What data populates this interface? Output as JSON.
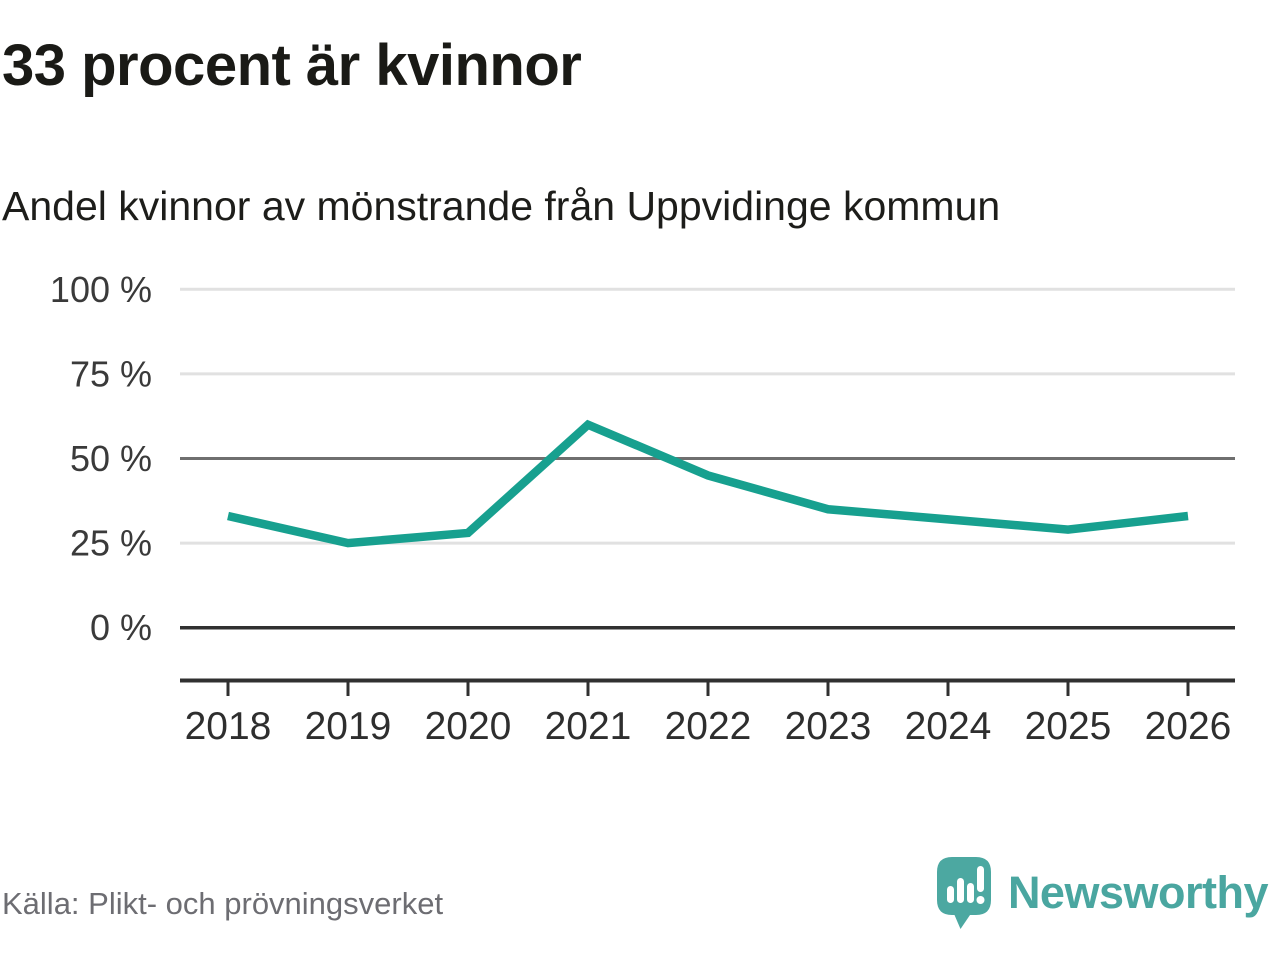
{
  "header": {
    "title": "33 procent är kvinnor",
    "subtitle": "Andel kvinnor av mönstrande från Uppvidinge kommun"
  },
  "footer": {
    "source": "Källa: Plikt- och prövningsverket",
    "brand": "Newsworthy"
  },
  "colors": {
    "line": "#17A08F",
    "brand_teal": "#4AA6A0",
    "grid_light": "#E1E1E1",
    "grid_mid": "#6F6F6F",
    "grid_dark": "#303030",
    "tick_label": "#2E2E2E",
    "y_label": "#3A3A3A"
  },
  "chart_data": {
    "type": "line",
    "title": "33 procent är kvinnor",
    "subtitle": "Andel kvinnor av mönstrande från Uppvidinge kommun",
    "x": [
      "2018",
      "2019",
      "2020",
      "2021",
      "2022",
      "2023",
      "2024",
      "2025",
      "2026"
    ],
    "series": [
      {
        "name": "Andel kvinnor av mönstrande",
        "color": "#17A08F",
        "values": [
          33,
          25,
          28,
          60,
          45,
          35,
          32,
          29,
          33
        ]
      }
    ],
    "unit": "%",
    "ylim": [
      0,
      100
    ],
    "yticks": [
      {
        "value": 100,
        "label": "100 %"
      },
      {
        "value": 75,
        "label": "75 %"
      },
      {
        "value": 50,
        "label": "50 %"
      },
      {
        "value": 25,
        "label": "25 %"
      },
      {
        "value": 0,
        "label": "0 %"
      }
    ],
    "grid": "horizontal",
    "legend": "none"
  }
}
